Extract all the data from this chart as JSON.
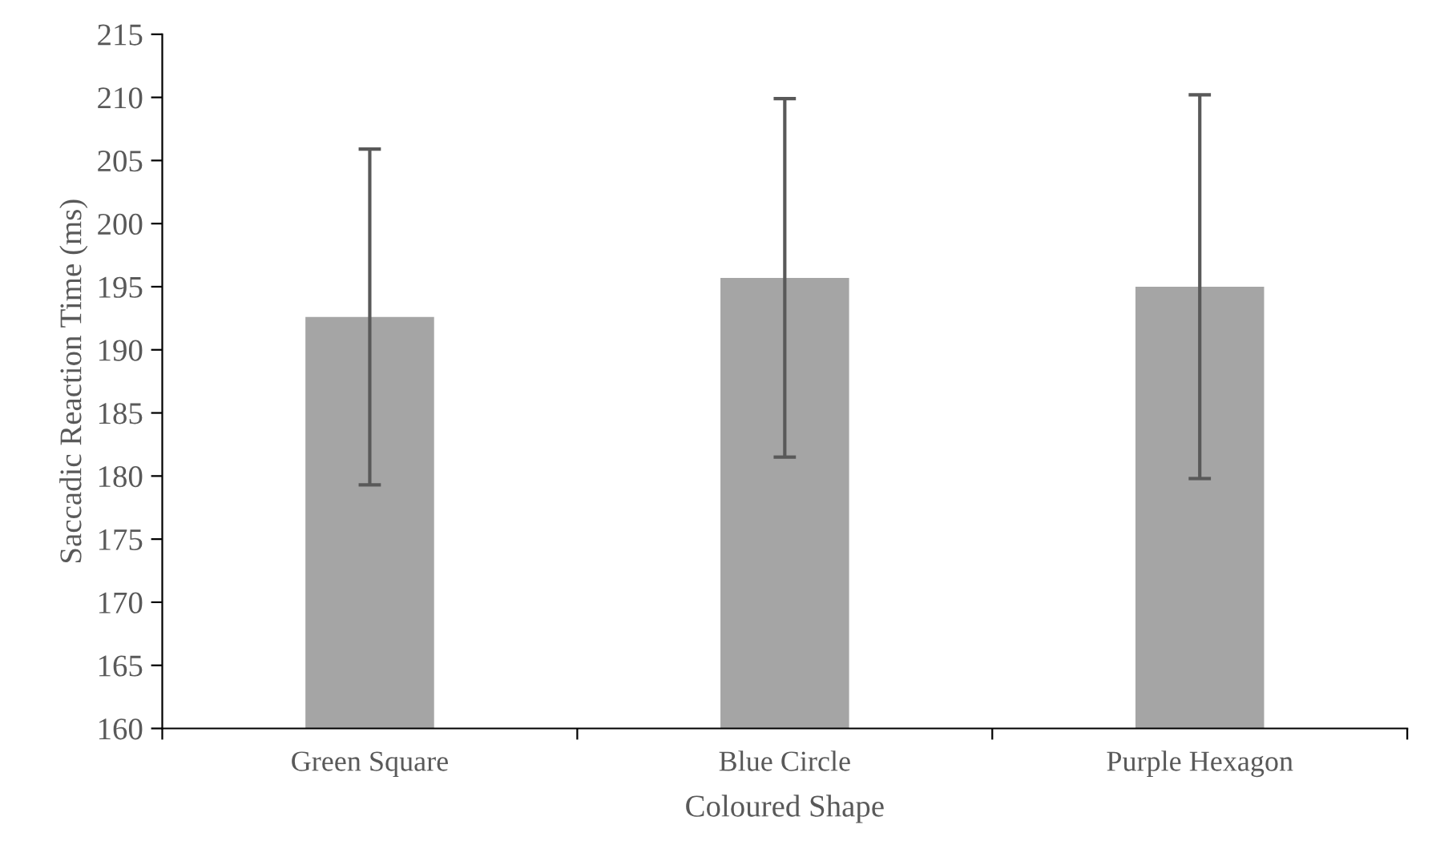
{
  "chart_data": {
    "type": "bar",
    "xlabel": "Coloured Shape",
    "ylabel": "Saccadic Reaction Time (ms)",
    "categories": [
      "Green Square",
      "Blue Circle",
      "Purple Hexagon"
    ],
    "values": [
      192.6,
      195.7,
      195.0
    ],
    "errors": [
      13.3,
      14.2,
      15.2
    ],
    "color": "#a5a5a5",
    "ylim": [
      160,
      215
    ],
    "yticks": [
      160,
      165,
      170,
      175,
      180,
      185,
      190,
      195,
      200,
      205,
      210,
      215
    ],
    "grid": false,
    "legend": false
  }
}
